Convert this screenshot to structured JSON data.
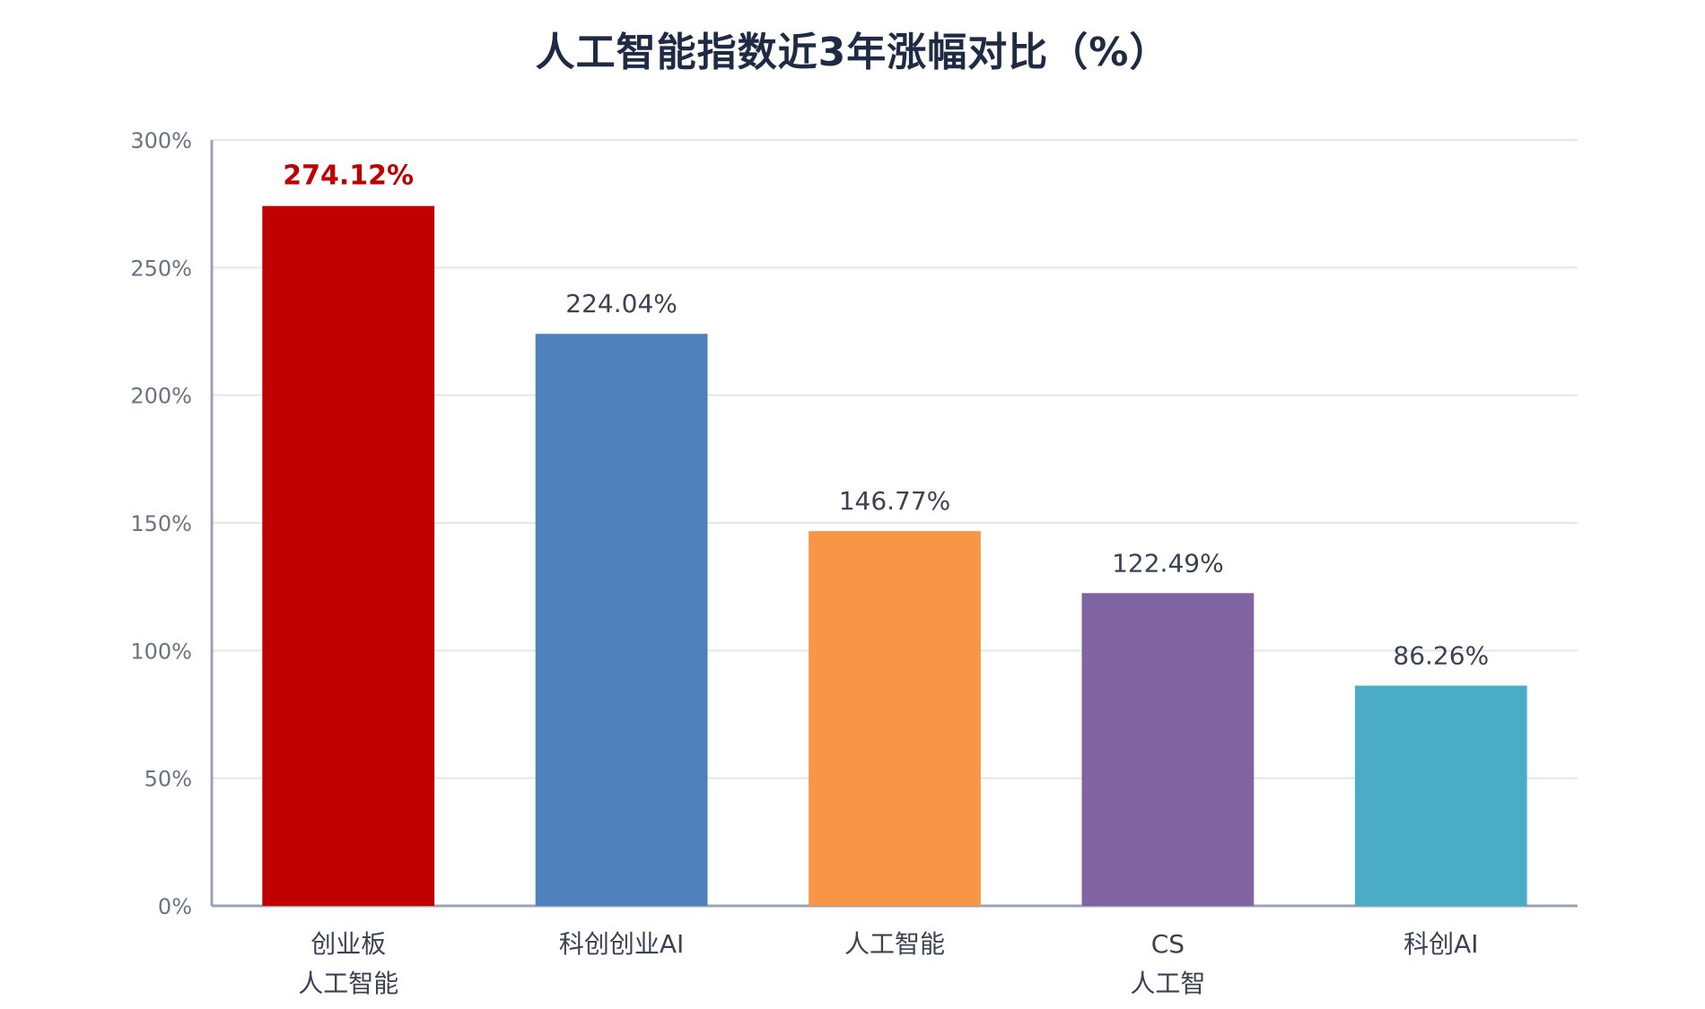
{
  "chart_data": {
    "type": "bar",
    "title": "人工智能指数近3年涨幅对比（%）",
    "categories": [
      [
        "创业板",
        "人工智能"
      ],
      [
        "科创创业AI"
      ],
      [
        "人工智能"
      ],
      [
        "CS",
        "人工智"
      ],
      [
        "科创AI"
      ]
    ],
    "values": [
      274.12,
      224.04,
      146.77,
      122.49,
      86.26
    ],
    "value_labels": [
      "274.12%",
      "224.04%",
      "146.77%",
      "122.49%",
      "86.26%"
    ],
    "colors": [
      "#c00000",
      "#4f81bd",
      "#f79646",
      "#8064a2",
      "#4bacc6"
    ],
    "highlight_index": 0,
    "ylim": [
      0,
      300
    ],
    "yticks": [
      0,
      50,
      100,
      150,
      200,
      250,
      300
    ],
    "ytick_labels": [
      "0%",
      "50%",
      "100%",
      "150%",
      "200%",
      "250%",
      "300%"
    ],
    "grid": true,
    "legend": "none",
    "xlabel": "",
    "ylabel": ""
  }
}
